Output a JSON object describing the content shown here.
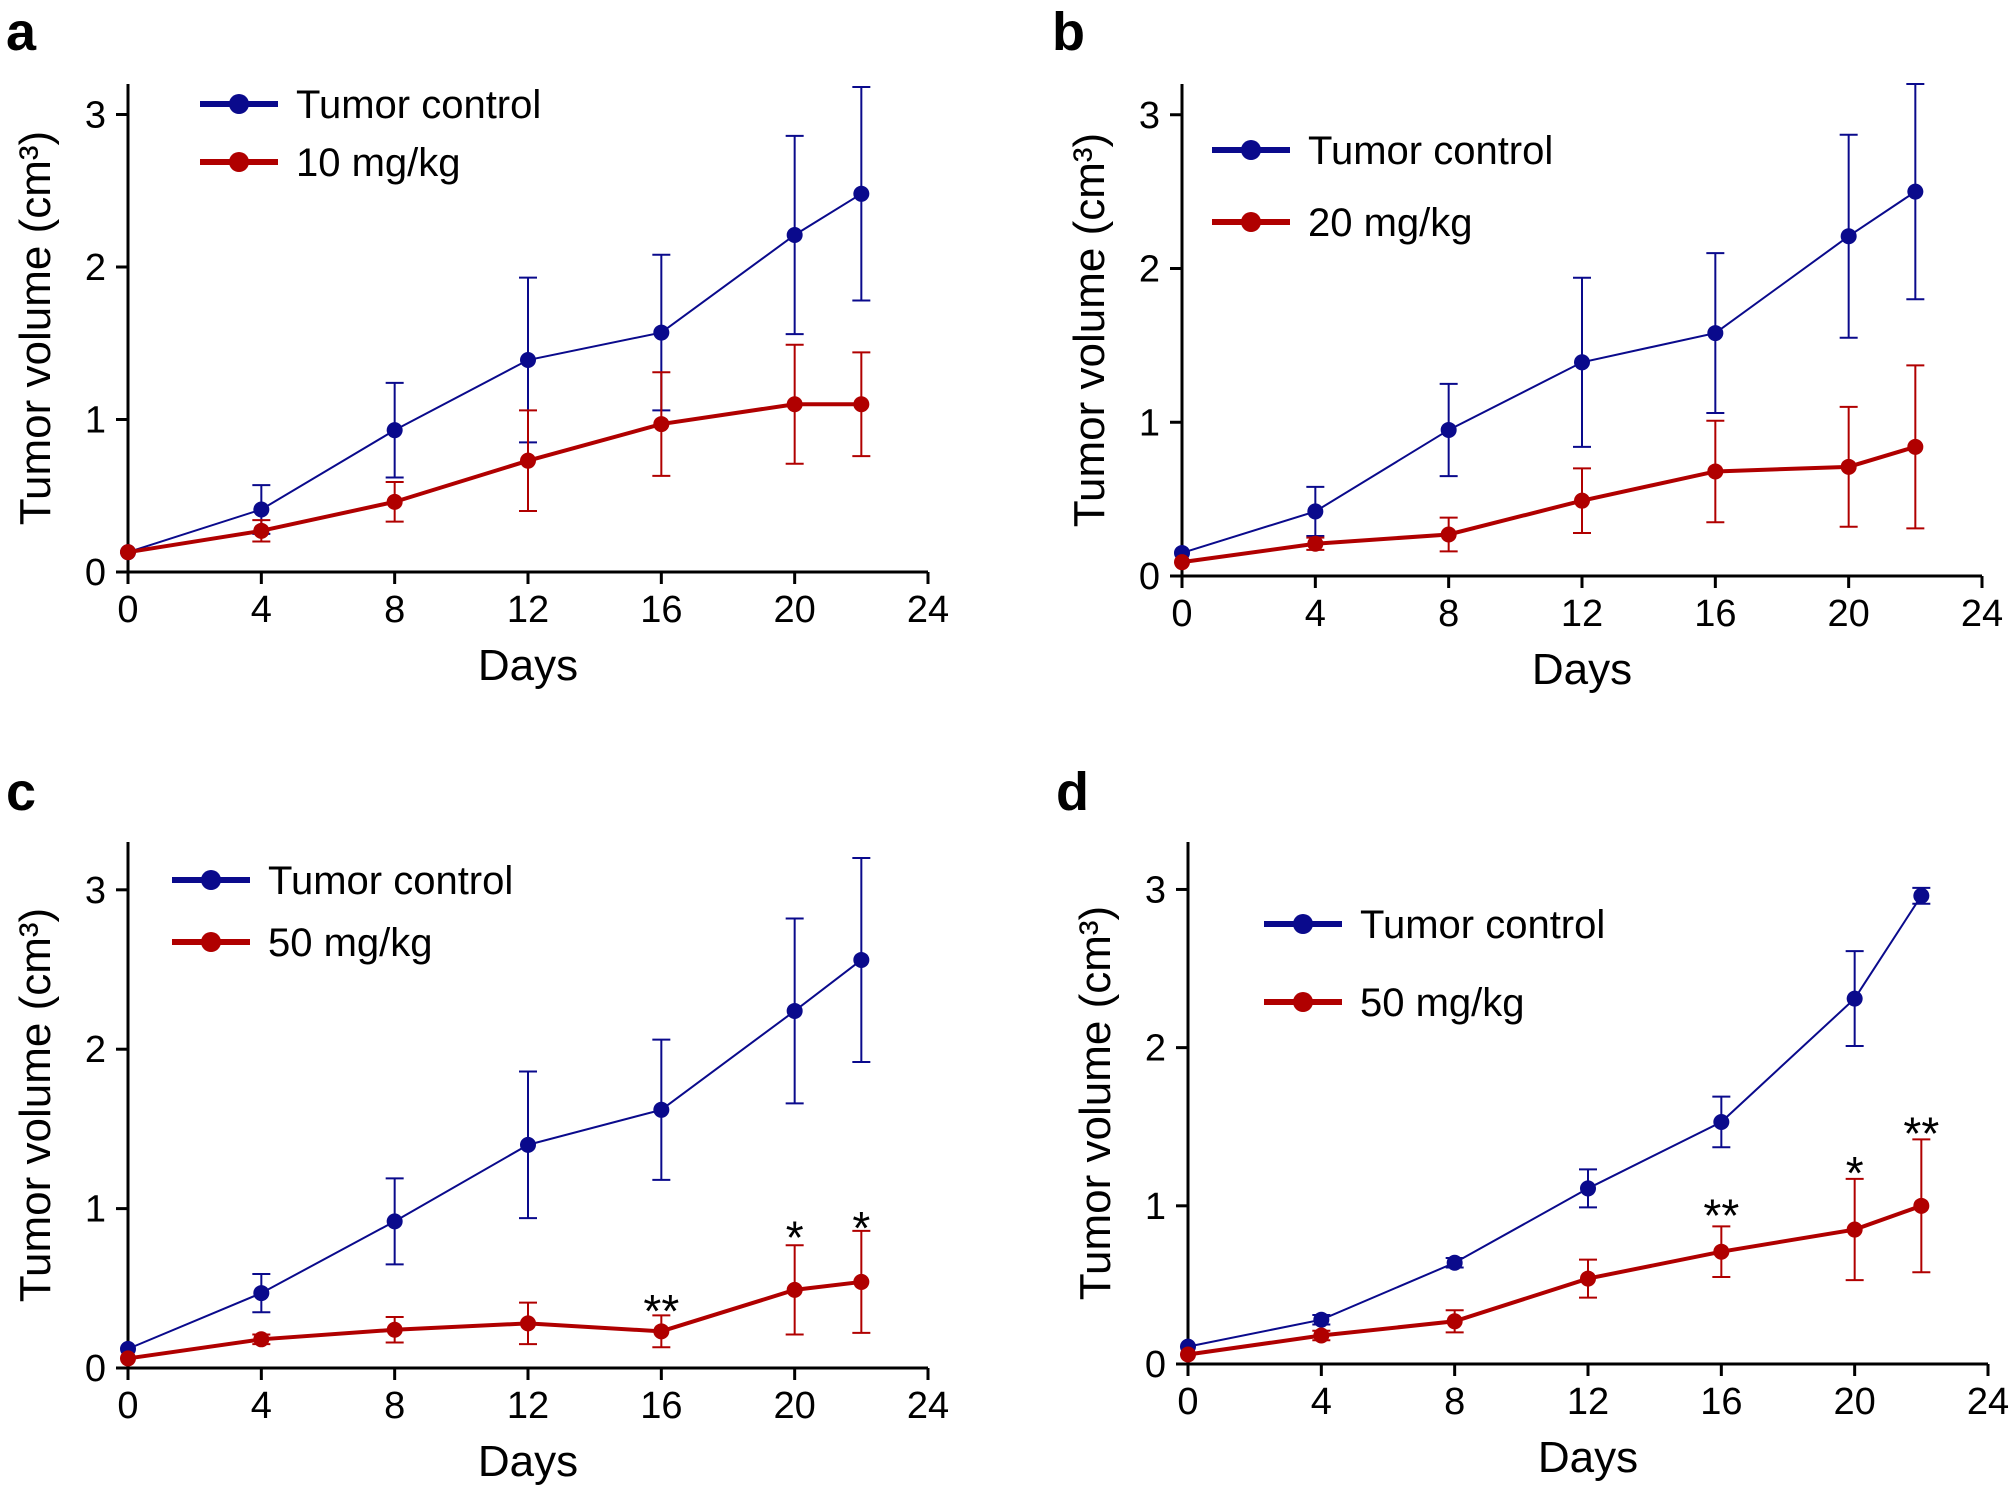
{
  "figure": {
    "series_colors": {
      "Tumor control": "#0a0a8c",
      "treated": "#b00000"
    },
    "chart_data": [
      {
        "panel": "a",
        "type": "line",
        "xlabel": "Days",
        "ylabel": "Tumor volume (cm³)",
        "xticks": [
          "0",
          "4",
          "8",
          "12",
          "16",
          "20",
          "24"
        ],
        "yticks": [
          "0",
          "1",
          "2",
          "3"
        ],
        "xlim": [
          0,
          24
        ],
        "ylim": [
          0,
          3.2
        ],
        "legend_position": "top-left",
        "series": [
          {
            "name": "Tumor control",
            "color": "#0a0a8c",
            "x": [
              0,
              4,
              8,
              12,
              16,
              20,
              22
            ],
            "y": [
              0.13,
              0.41,
              0.93,
              1.39,
              1.57,
              2.21,
              2.48
            ],
            "err": [
              0,
              0.16,
              0.31,
              0.54,
              0.51,
              0.65,
              0.7
            ]
          },
          {
            "name": "10 mg/kg",
            "color": "#b00000",
            "x": [
              0,
              4,
              8,
              12,
              16,
              20,
              22
            ],
            "y": [
              0.13,
              0.27,
              0.46,
              0.73,
              0.97,
              1.1,
              1.1
            ],
            "err": [
              0,
              0.07,
              0.13,
              0.33,
              0.34,
              0.39,
              0.34
            ]
          }
        ],
        "annotations": []
      },
      {
        "panel": "b",
        "type": "line",
        "xlabel": "Days",
        "ylabel": "Tumor volume (cm³)",
        "xticks": [
          "0",
          "4",
          "8",
          "12",
          "16",
          "20",
          "24"
        ],
        "yticks": [
          "0",
          "1",
          "2",
          "3"
        ],
        "xlim": [
          0,
          24
        ],
        "ylim": [
          0,
          3.2
        ],
        "legend_position": "top-left",
        "series": [
          {
            "name": "Tumor control",
            "color": "#0a0a8c",
            "x": [
              0,
              4,
              8,
              12,
              16,
              20,
              22
            ],
            "y": [
              0.15,
              0.42,
              0.95,
              1.39,
              1.58,
              2.21,
              2.5
            ],
            "err": [
              0,
              0.16,
              0.3,
              0.55,
              0.52,
              0.66,
              0.7
            ]
          },
          {
            "name": "20 mg/kg",
            "color": "#b00000",
            "x": [
              0,
              4,
              8,
              12,
              16,
              20,
              22
            ],
            "y": [
              0.09,
              0.21,
              0.27,
              0.49,
              0.68,
              0.71,
              0.84
            ],
            "err": [
              0,
              0.04,
              0.11,
              0.21,
              0.33,
              0.39,
              0.53
            ]
          }
        ],
        "annotations": []
      },
      {
        "panel": "c",
        "type": "line",
        "xlabel": "Days",
        "ylabel": "Tumor volume (cm³)",
        "xticks": [
          "0",
          "4",
          "8",
          "12",
          "16",
          "20",
          "24"
        ],
        "yticks": [
          "0",
          "1",
          "2",
          "3"
        ],
        "xlim": [
          0,
          24
        ],
        "ylim": [
          0,
          3.3
        ],
        "legend_position": "top-left",
        "series": [
          {
            "name": "Tumor control",
            "color": "#0a0a8c",
            "x": [
              0,
              4,
              8,
              12,
              16,
              20,
              22
            ],
            "y": [
              0.12,
              0.47,
              0.92,
              1.4,
              1.62,
              2.24,
              2.56
            ],
            "err": [
              0,
              0.12,
              0.27,
              0.46,
              0.44,
              0.58,
              0.64
            ]
          },
          {
            "name": "50 mg/kg",
            "color": "#b00000",
            "x": [
              0,
              4,
              8,
              12,
              16,
              20,
              22
            ],
            "y": [
              0.06,
              0.18,
              0.24,
              0.28,
              0.23,
              0.49,
              0.54
            ],
            "err": [
              0,
              0.03,
              0.08,
              0.13,
              0.1,
              0.28,
              0.32
            ]
          }
        ],
        "annotations": [
          {
            "x": 16,
            "y": 0.37,
            "text": "**"
          },
          {
            "x": 20,
            "y": 0.83,
            "text": "*"
          },
          {
            "x": 22,
            "y": 0.89,
            "text": "*"
          }
        ]
      },
      {
        "panel": "d",
        "type": "line",
        "xlabel": "Days",
        "ylabel": "Tumor volume (cm³)",
        "xticks": [
          "0",
          "4",
          "8",
          "12",
          "16",
          "20",
          "24"
        ],
        "yticks": [
          "0",
          "1",
          "2",
          "3"
        ],
        "xlim": [
          0,
          24
        ],
        "ylim": [
          0,
          3.3
        ],
        "legend_position": "top-left",
        "series": [
          {
            "name": "Tumor control",
            "color": "#0a0a8c",
            "x": [
              0,
              4,
              8,
              12,
              16,
              20,
              22
            ],
            "y": [
              0.11,
              0.28,
              0.64,
              1.11,
              1.53,
              2.31,
              2.96
            ],
            "err": [
              0,
              0.03,
              0.03,
              0.12,
              0.16,
              0.3,
              0.05
            ]
          },
          {
            "name": "50 mg/kg",
            "color": "#b00000",
            "x": [
              0,
              4,
              8,
              12,
              16,
              20,
              22
            ],
            "y": [
              0.06,
              0.18,
              0.27,
              0.54,
              0.71,
              0.85,
              1.0
            ],
            "err": [
              0,
              0.03,
              0.07,
              0.12,
              0.16,
              0.32,
              0.42
            ]
          }
        ],
        "annotations": [
          {
            "x": 16,
            "y": 0.95,
            "text": "**"
          },
          {
            "x": 20,
            "y": 1.22,
            "text": "*"
          },
          {
            "x": 22,
            "y": 1.47,
            "text": "**"
          }
        ]
      }
    ]
  }
}
